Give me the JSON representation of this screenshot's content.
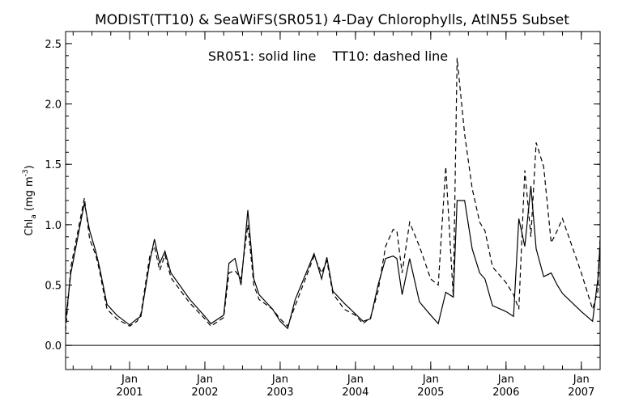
{
  "chart_data": {
    "type": "line",
    "title": "MODIST(TT10) & SeaWiFS(SR051) 4-Day Chlorophylls, AtlN55 Subset",
    "annotation": "SR051: solid line    TT10: dashed line",
    "ylabel_main": "Chl",
    "ylabel_sub": "a",
    "ylabel_unit": " (mg m",
    "ylabel_sup": "-3",
    "ylabel_close": ")",
    "ylim": [
      -0.2,
      2.6
    ],
    "xlim": [
      2000.15,
      2007.25
    ],
    "yticks": [
      0.0,
      0.5,
      1.0,
      1.5,
      2.0,
      2.5
    ],
    "ytick_labels": [
      "0.0",
      "0.5",
      "1.0",
      "1.5",
      "2.0",
      "2.5"
    ],
    "xticks": [
      2001.0,
      2002.0,
      2003.0,
      2004.0,
      2005.0,
      2006.0,
      2007.0
    ],
    "xtick_month_label": "Jan",
    "xtick_year_labels": [
      "2001",
      "2002",
      "2003",
      "2004",
      "2005",
      "2006",
      "2007"
    ],
    "xtick_minor_step": 0.25,
    "zero_line": 0.0,
    "grid": false,
    "series": [
      {
        "name": "SR051",
        "style": "solid",
        "color": "#000000",
        "x": [
          2000.15,
          2000.22,
          2000.4,
          2000.47,
          2000.55,
          2000.6,
          2000.7,
          2000.83,
          2001.0,
          2001.1,
          2001.15,
          2001.27,
          2001.33,
          2001.4,
          2001.47,
          2001.55,
          2001.8,
          2002.0,
          2002.08,
          2002.25,
          2002.32,
          2002.4,
          2002.48,
          2002.57,
          2002.65,
          2002.72,
          2002.9,
          2003.0,
          2003.1,
          2003.2,
          2003.45,
          2003.55,
          2003.62,
          2003.7,
          2003.85,
          2004.0,
          2004.1,
          2004.2,
          2004.3,
          2004.4,
          2004.5,
          2004.55,
          2004.62,
          2004.72,
          2004.85,
          2005.0,
          2005.1,
          2005.2,
          2005.3,
          2005.35,
          2005.45,
          2005.55,
          2005.65,
          2005.72,
          2005.82,
          2006.0,
          2006.1,
          2006.17,
          2006.25,
          2006.33,
          2006.4,
          2006.5,
          2006.6,
          2006.68,
          2006.75,
          2007.0,
          2007.15,
          2007.22,
          2007.25
        ],
        "y": [
          0.2,
          0.6,
          1.18,
          0.95,
          0.78,
          0.65,
          0.34,
          0.25,
          0.17,
          0.22,
          0.24,
          0.7,
          0.88,
          0.68,
          0.78,
          0.6,
          0.38,
          0.24,
          0.18,
          0.25,
          0.68,
          0.72,
          0.5,
          1.12,
          0.55,
          0.42,
          0.3,
          0.2,
          0.14,
          0.38,
          0.76,
          0.55,
          0.73,
          0.45,
          0.35,
          0.26,
          0.2,
          0.22,
          0.5,
          0.72,
          0.74,
          0.72,
          0.42,
          0.72,
          0.36,
          0.25,
          0.18,
          0.44,
          0.4,
          1.2,
          1.2,
          0.8,
          0.6,
          0.55,
          0.33,
          0.28,
          0.24,
          1.05,
          0.82,
          1.32,
          0.8,
          0.57,
          0.6,
          0.5,
          0.43,
          0.28,
          0.2,
          0.55,
          0.85
        ]
      },
      {
        "name": "TT10",
        "style": "dashed",
        "color": "#000000",
        "x": [
          2000.15,
          2000.22,
          2000.4,
          2000.47,
          2000.55,
          2000.6,
          2000.7,
          2000.83,
          2001.0,
          2001.1,
          2001.15,
          2001.27,
          2001.33,
          2001.4,
          2001.47,
          2001.55,
          2001.8,
          2002.0,
          2002.08,
          2002.25,
          2002.32,
          2002.4,
          2002.48,
          2002.57,
          2002.65,
          2002.72,
          2002.9,
          2003.0,
          2003.1,
          2003.2,
          2003.45,
          2003.55,
          2003.62,
          2003.7,
          2003.85,
          2004.0,
          2004.1,
          2004.2,
          2004.3,
          2004.4,
          2004.5,
          2004.55,
          2004.62,
          2004.72,
          2004.85,
          2005.0,
          2005.1,
          2005.2,
          2005.3,
          2005.35,
          2005.45,
          2005.55,
          2005.65,
          2005.72,
          2005.82,
          2006.0,
          2006.1,
          2006.17,
          2006.25,
          2006.33,
          2006.4,
          2006.5,
          2006.6,
          2006.68,
          2006.75,
          2007.0,
          2007.15,
          2007.22,
          2007.25
        ],
        "y": [
          0.12,
          0.65,
          1.22,
          0.88,
          0.75,
          0.62,
          0.3,
          0.22,
          0.16,
          0.2,
          0.26,
          0.75,
          0.82,
          0.62,
          0.75,
          0.56,
          0.35,
          0.22,
          0.16,
          0.23,
          0.6,
          0.62,
          0.55,
          1.0,
          0.5,
          0.38,
          0.3,
          0.22,
          0.16,
          0.33,
          0.74,
          0.6,
          0.7,
          0.43,
          0.3,
          0.25,
          0.18,
          0.23,
          0.45,
          0.82,
          0.96,
          0.95,
          0.6,
          1.02,
          0.82,
          0.55,
          0.5,
          1.48,
          0.4,
          2.38,
          1.75,
          1.3,
          1.02,
          0.95,
          0.65,
          0.52,
          0.42,
          0.3,
          1.45,
          0.9,
          1.68,
          1.48,
          0.85,
          0.95,
          1.05,
          0.6,
          0.3,
          0.45,
          0.9
        ]
      }
    ]
  }
}
